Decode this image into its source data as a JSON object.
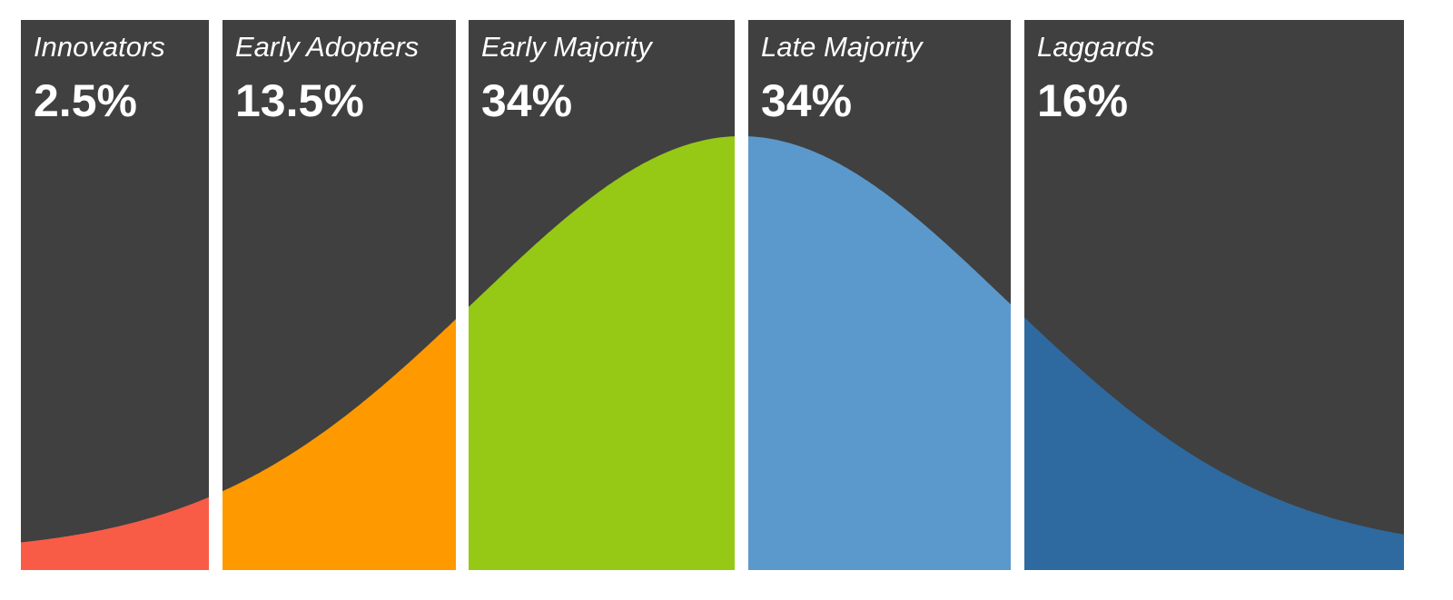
{
  "chart_data": {
    "type": "area",
    "title": "",
    "xlabel": "",
    "ylabel": "",
    "grid": false,
    "legend": "none",
    "background_color": "#404040",
    "categories": [
      "Innovators",
      "Early Adopters",
      "Early Majority",
      "Late Majority",
      "Laggards"
    ],
    "values": [
      2.5,
      13.5,
      34,
      34,
      16
    ],
    "labels": [
      "2.5%",
      "13.5%",
      "34%",
      "34%",
      "16%"
    ],
    "colors": [
      "#f85c47",
      "#ff9900",
      "#95c916",
      "#5b99cc",
      "#2e6aa0"
    ],
    "curve": "normal distribution"
  }
}
